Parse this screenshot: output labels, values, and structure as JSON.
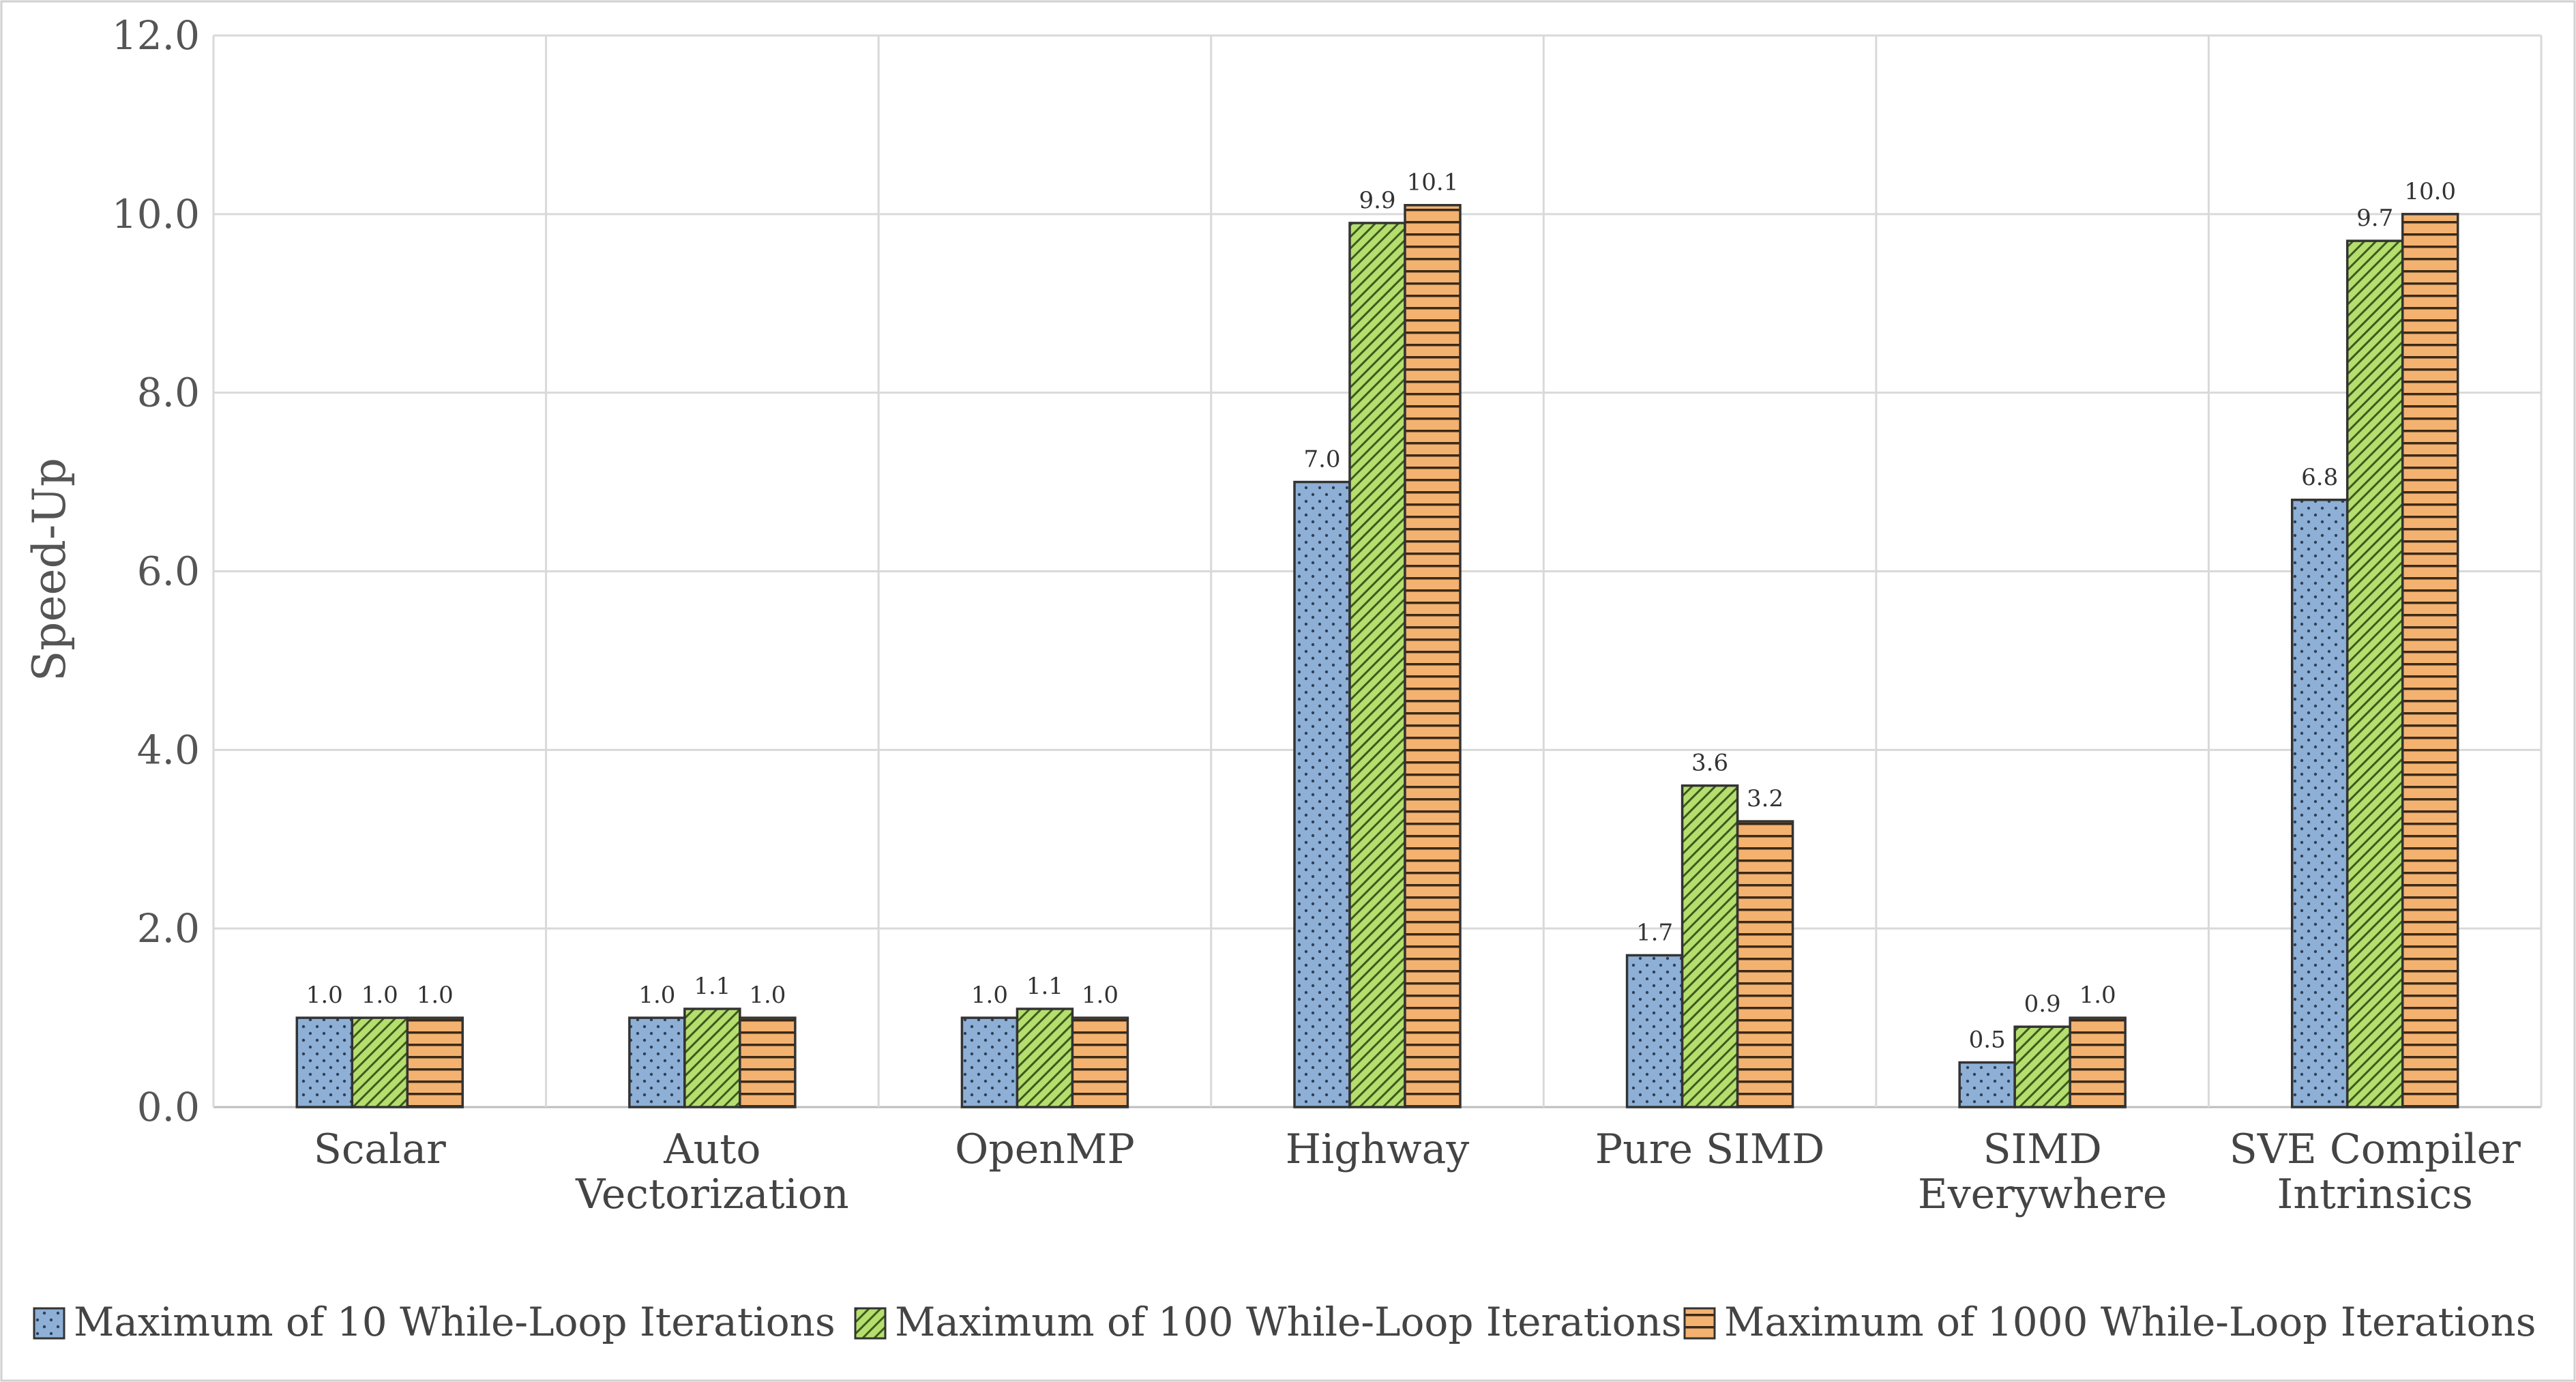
{
  "chart_data": {
    "type": "bar",
    "title": "",
    "xlabel": "",
    "ylabel": "Speed-Up",
    "ylim": [
      0,
      12
    ],
    "yticks": [
      "0.0",
      "2.0",
      "4.0",
      "6.0",
      "8.0",
      "10.0",
      "12.0"
    ],
    "grid": true,
    "legend_position": "bottom",
    "categories": [
      [
        "Scalar"
      ],
      [
        "Auto",
        "Vectorization"
      ],
      [
        "OpenMP"
      ],
      [
        "Highway"
      ],
      [
        "Pure SIMD"
      ],
      [
        "SIMD",
        "Everywhere"
      ],
      [
        "SVE Compiler",
        "Intrinsics"
      ]
    ],
    "series": [
      {
        "name": "Maximum of 10 While-Loop Iterations",
        "color": "#8eb0d6",
        "pattern": "dots",
        "values": [
          1.0,
          1.0,
          1.0,
          7.0,
          1.7,
          0.5,
          6.8
        ],
        "labels": [
          "1.0",
          "1.0",
          "1.0",
          "7.0",
          "1.7",
          "0.5",
          "6.8"
        ]
      },
      {
        "name": "Maximum of 100 While-Loop Iterations",
        "color": "#b5de6e",
        "pattern": "diagonal",
        "values": [
          1.0,
          1.1,
          1.1,
          9.9,
          3.6,
          0.9,
          9.7
        ],
        "labels": [
          "1.0",
          "1.1",
          "1.1",
          "9.9",
          "3.6",
          "0.9",
          "9.7"
        ]
      },
      {
        "name": "Maximum of 1000 While-Loop Iterations",
        "color": "#f4b270",
        "pattern": "horizontal",
        "values": [
          1.0,
          1.0,
          1.0,
          10.1,
          3.2,
          1.0,
          10.0
        ],
        "labels": [
          "1.0",
          "1.0",
          "1.0",
          "10.1",
          "3.2",
          "1.0",
          "10.0"
        ]
      }
    ]
  }
}
